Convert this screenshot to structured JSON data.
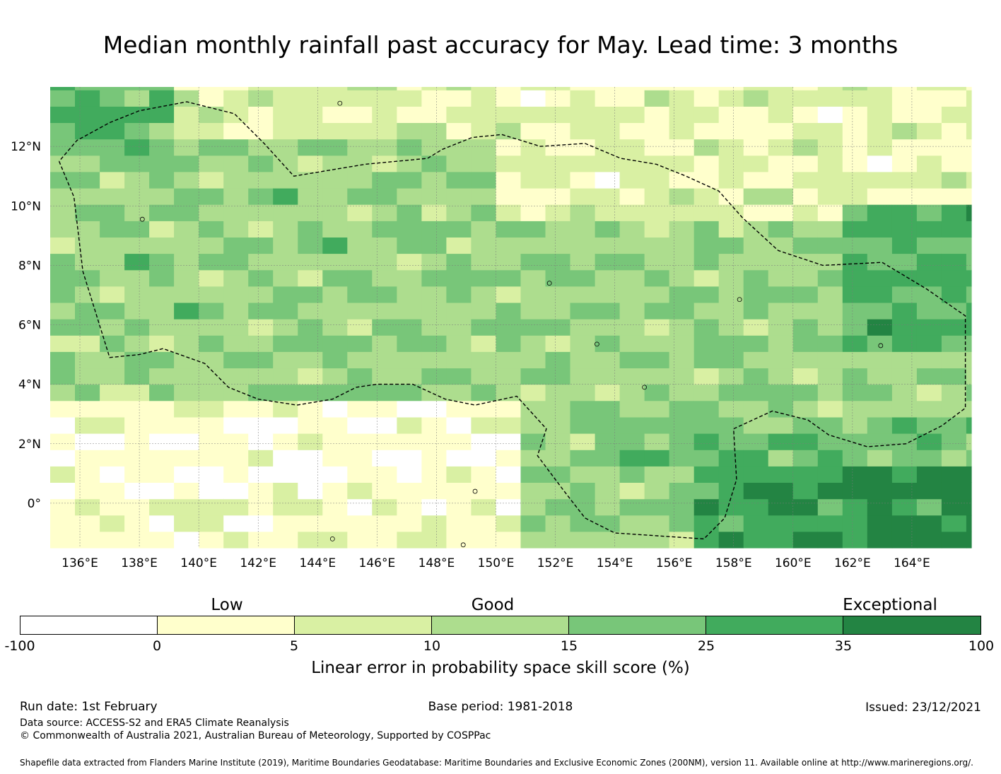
{
  "title": "Median monthly rainfall past accuracy for May. Lead time: 3 months",
  "map": {
    "lon_range": [
      135,
      166
    ],
    "lat_range": [
      -1.5,
      14
    ],
    "x_ticks": [
      {
        "v": 136,
        "label": "136°E"
      },
      {
        "v": 138,
        "label": "138°E"
      },
      {
        "v": 140,
        "label": "140°E"
      },
      {
        "v": 142,
        "label": "142°E"
      },
      {
        "v": 144,
        "label": "144°E"
      },
      {
        "v": 146,
        "label": "146°E"
      },
      {
        "v": 148,
        "label": "148°E"
      },
      {
        "v": 150,
        "label": "150°E"
      },
      {
        "v": 152,
        "label": "152°E"
      },
      {
        "v": 154,
        "label": "154°E"
      },
      {
        "v": 156,
        "label": "156°E"
      },
      {
        "v": 158,
        "label": "158°E"
      },
      {
        "v": 160,
        "label": "160°E"
      },
      {
        "v": 162,
        "label": "162°E"
      },
      {
        "v": 164,
        "label": "164°E"
      }
    ],
    "y_ticks": [
      {
        "v": 12,
        "label": "12°N"
      },
      {
        "v": 10,
        "label": "10°N"
      },
      {
        "v": 8,
        "label": "8°N"
      },
      {
        "v": 6,
        "label": "6°N"
      },
      {
        "v": 4,
        "label": "4°N"
      },
      {
        "v": 2,
        "label": "2°N"
      },
      {
        "v": 0,
        "label": "0°"
      }
    ],
    "eez_boundary": [
      [
        135.3,
        11.5
      ],
      [
        135.8,
        10.3
      ],
      [
        136.1,
        7.8
      ],
      [
        137.0,
        4.9
      ],
      [
        138.0,
        5.0
      ],
      [
        138.8,
        5.2
      ],
      [
        140.2,
        4.7
      ],
      [
        141.0,
        3.9
      ],
      [
        142.0,
        3.5
      ],
      [
        143.3,
        3.3
      ],
      [
        144.5,
        3.5
      ],
      [
        145.3,
        3.9
      ],
      [
        146.0,
        4.0
      ],
      [
        147.2,
        4.0
      ],
      [
        148.3,
        3.5
      ],
      [
        149.3,
        3.3
      ],
      [
        150.7,
        3.6
      ],
      [
        151.7,
        2.5
      ],
      [
        151.4,
        1.6
      ],
      [
        152.3,
        0.4
      ],
      [
        153.0,
        -0.5
      ],
      [
        154.0,
        -1.0
      ],
      [
        155.5,
        -1.1
      ],
      [
        157.0,
        -1.2
      ],
      [
        157.7,
        -0.5
      ],
      [
        158.1,
        0.8
      ],
      [
        158.0,
        2.5
      ],
      [
        159.3,
        3.1
      ],
      [
        160.5,
        2.8
      ],
      [
        161.2,
        2.3
      ],
      [
        162.5,
        1.9
      ],
      [
        163.8,
        2.0
      ],
      [
        165.0,
        2.6
      ],
      [
        165.8,
        3.2
      ],
      [
        165.8,
        6.3
      ],
      [
        164.5,
        7.2
      ],
      [
        163.0,
        8.1
      ],
      [
        161.0,
        8.0
      ],
      [
        159.5,
        8.5
      ],
      [
        158.3,
        9.6
      ],
      [
        157.5,
        10.5
      ],
      [
        156.4,
        11.0
      ],
      [
        155.4,
        11.4
      ],
      [
        154.2,
        11.6
      ],
      [
        153.0,
        12.1
      ],
      [
        151.5,
        12.0
      ],
      [
        150.2,
        12.4
      ],
      [
        149.2,
        12.3
      ],
      [
        148.2,
        11.9
      ],
      [
        147.7,
        11.6
      ],
      [
        145.6,
        11.4
      ],
      [
        143.2,
        11.0
      ],
      [
        142.2,
        12.1
      ],
      [
        141.2,
        13.1
      ],
      [
        139.6,
        13.5
      ],
      [
        138.0,
        13.2
      ],
      [
        137.0,
        12.8
      ],
      [
        135.9,
        12.2
      ],
      [
        135.3,
        11.5
      ]
    ]
  },
  "colorbar": {
    "categories": [
      "Low",
      "Good",
      "Exceptional"
    ],
    "ticks": [
      "-100",
      "0",
      "5",
      "10",
      "15",
      "25",
      "35",
      "100"
    ],
    "colors": [
      "#ffffff",
      "#ffffcc",
      "#d9f0a3",
      "#addd8e",
      "#78c679",
      "#41ab5d",
      "#238443"
    ],
    "label": "Linear error in probability space skill score (%)"
  },
  "footer": {
    "run_date": "Run date: 1st February",
    "base_period": "Base period: 1981-2018",
    "issued": "Issued: 23/12/2021",
    "data_source": "Data source: ACCESS-S2 and ERA5 Climate Reanalysis",
    "copyright": "© Commonwealth of Australia 2021, Australian Bureau of Meteorology, Supported by COSPPac",
    "shapefile": "Shapefile data extracted from Flanders Marine Institute (2019), Maritime Boundaries Geodatabase: Maritime Boundaries and Exclusive Economic Zones (200NM), version 11. Available online at http://www.marineregions.org/."
  }
}
